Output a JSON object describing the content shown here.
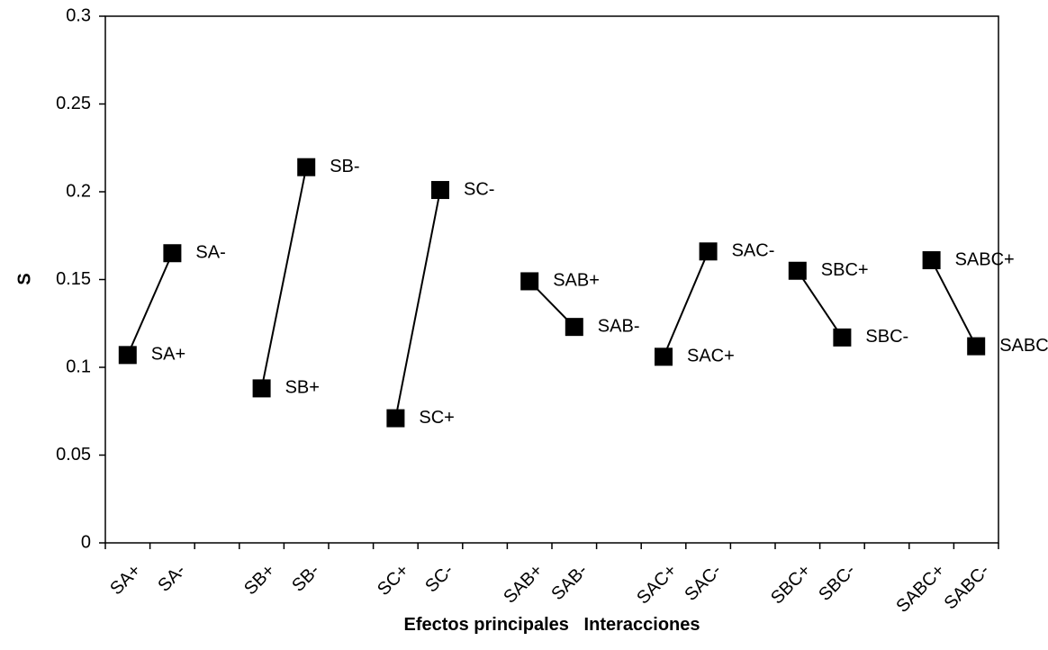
{
  "chart_data": {
    "type": "line",
    "x_label": "Efectos principales   Interacciones",
    "y_label": "S",
    "categories": [
      "SA+",
      "SA-",
      null,
      "SB+",
      "SB-",
      null,
      "SC+",
      "SC-",
      null,
      "SAB+",
      "SAB-",
      null,
      "SAC+",
      "SAC-",
      null,
      "SBC+",
      "SBC-",
      null,
      "SABC+",
      "SABC-"
    ],
    "values": [
      0.107,
      0.165,
      null,
      0.088,
      0.214,
      null,
      0.071,
      0.201,
      null,
      0.149,
      0.123,
      null,
      0.106,
      0.166,
      null,
      0.155,
      0.117,
      null,
      0.161,
      0.112
    ],
    "color": "#000000",
    "ylim": [
      0,
      0.3
    ],
    "yticks": [
      0,
      0.05,
      0.1,
      0.15,
      0.2,
      0.25,
      0.3
    ]
  }
}
